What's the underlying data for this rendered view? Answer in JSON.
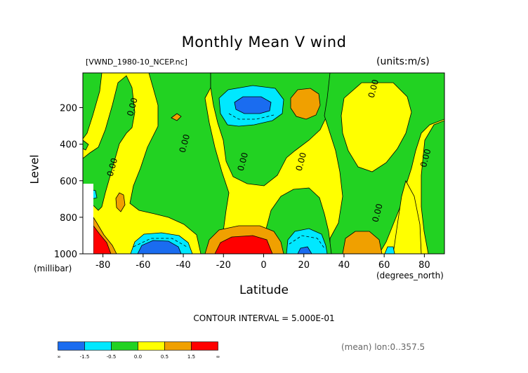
{
  "title": "Monthly Mean V wind",
  "file_label": "[VWND_1980-10_NCEP.nc]",
  "units_label": "(units:m/s)",
  "contour_note": "CONTOUR INTERVAL = 5.000E-01",
  "mean_note": "(mean) lon:0..357.5",
  "chart_data": {
    "type": "heatmap",
    "title": "Monthly Mean V wind",
    "xlabel": "Latitude",
    "x_unit_label": "(degrees_north)",
    "ylabel": "Level",
    "y_unit_label": "(millibar)",
    "xlim": [
      -90,
      90
    ],
    "ylim": [
      1000,
      10
    ],
    "x_ticks": [
      -80,
      -60,
      -40,
      -20,
      0,
      20,
      40,
      60,
      80
    ],
    "x_tick_labels": [
      "-80",
      "-60",
      "-40",
      "-20",
      "0",
      "20",
      "40",
      "60",
      "80"
    ],
    "y_ticks": [
      200,
      400,
      600,
      800,
      1000
    ],
    "y_tick_labels": [
      "200",
      "400",
      "600",
      "800",
      "1000"
    ],
    "contour_labels": [
      {
        "text": "0.00",
        "lat": -64,
        "lev": 200
      },
      {
        "text": "0.00",
        "lat": -74,
        "lev": 530
      },
      {
        "text": "0.00",
        "lat": -38,
        "lev": 400
      },
      {
        "text": "0.00",
        "lat": -9,
        "lev": 500
      },
      {
        "text": "0.00",
        "lat": 20,
        "lev": 500
      },
      {
        "text": "0.00",
        "lat": 56,
        "lev": 100
      },
      {
        "text": "0.00",
        "lat": 58,
        "lev": 780
      },
      {
        "text": "0.00",
        "lat": 82,
        "lev": 480
      }
    ],
    "colorbar": {
      "bins": [
        "-inf",
        "-1.5",
        "-0.5",
        "0.0",
        "0.5",
        "1.5",
        "inf"
      ],
      "tick_labels": [
        "-∞",
        "-1.5",
        "-0.5",
        "0.0",
        "0.5",
        "1.5",
        "∞"
      ],
      "colors": [
        "#1a6cf0",
        "#00e8ff",
        "#22d222",
        "#ffff00",
        "#f0a000",
        "#ff0000"
      ]
    },
    "regions": [
      {
        "name": "base-yellow",
        "level": "0.0 to 0.5",
        "color": "#ffff00"
      },
      {
        "name": "green-west-band",
        "level": "-0.5 to 0.0",
        "color": "#22d222"
      },
      {
        "name": "green-mid-band",
        "level": "-0.5 to 0.0",
        "color": "#22d222"
      },
      {
        "name": "green-east-area",
        "level": "-0.5 to 0.0",
        "color": "#22d222"
      },
      {
        "name": "cyan-upper-south",
        "level": "-1.5 to -0.5",
        "color": "#00e8ff"
      },
      {
        "name": "blue-upper-south",
        "level": "< -1.5",
        "color": "#1a6cf0"
      },
      {
        "name": "orange-upper-north",
        "level": "0.5 to 1.5",
        "color": "#f0a000"
      },
      {
        "name": "red-low-south",
        "level": "> 1.5",
        "color": "#ff0000"
      },
      {
        "name": "red-low-subtropic",
        "level": "> 1.5",
        "color": "#ff0000"
      },
      {
        "name": "blue-low-south",
        "level": "< -1.5",
        "color": "#1a6cf0"
      },
      {
        "name": "cyan-low-north",
        "level": "-1.5 to -0.5",
        "color": "#00e8ff"
      },
      {
        "name": "orange-low-north",
        "level": "0.5 to 1.5",
        "color": "#f0a000"
      }
    ]
  }
}
